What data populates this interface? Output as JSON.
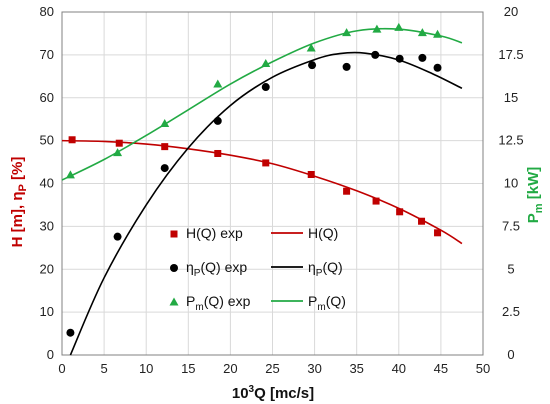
{
  "chart_data": {
    "type": "scatter",
    "xlabel": {
      "prefix": "10",
      "sup": "3",
      "rest": "Q [mc/s]"
    },
    "ylabel_left": {
      "a": "H [m], η",
      "sub": "P",
      "b": " [%]"
    },
    "ylabel_right": {
      "a": "P",
      "sub": "m",
      "b": " [kW]"
    },
    "xlim": [
      0,
      50
    ],
    "ylim_left": [
      0,
      80
    ],
    "ylim_right": [
      0,
      20
    ],
    "x_ticks": [
      "0",
      "5",
      "10",
      "15",
      "20",
      "25",
      "30",
      "35",
      "40",
      "45",
      "50"
    ],
    "y_left_ticks": [
      "0",
      "10",
      "20",
      "30",
      "40",
      "50",
      "60",
      "70",
      "80"
    ],
    "y_right_ticks": [
      "0",
      "2.5",
      "5",
      "7.5",
      "10",
      "12.5",
      "15",
      "17.5",
      "20"
    ],
    "grid": true,
    "colors": {
      "H": "#c00000",
      "eta": "#000000",
      "P": "#22aa44"
    },
    "series": [
      {
        "name": "H(Q) exp",
        "marker": "square",
        "axis": "left",
        "color": "#c00000",
        "x": [
          1.2,
          6.8,
          12.2,
          18.5,
          24.2,
          29.6,
          33.8,
          37.3,
          40.1,
          42.7,
          44.6
        ],
        "y": [
          50.2,
          49.4,
          48.6,
          47.0,
          44.8,
          42.1,
          38.2,
          35.9,
          33.4,
          31.2,
          28.5
        ]
      },
      {
        "name": "H(Q)",
        "kind": "line",
        "axis": "left",
        "color": "#c00000",
        "x": [
          0,
          5,
          10,
          15,
          20,
          25,
          30,
          35,
          40,
          45,
          47.5
        ],
        "y": [
          50.0,
          49.8,
          49.2,
          48.1,
          46.6,
          44.6,
          41.7,
          38.3,
          34.2,
          29.1,
          26.0
        ]
      },
      {
        "name": "ηP(Q) exp",
        "marker": "circle",
        "axis": "left",
        "color": "#000000",
        "x": [
          1.0,
          6.6,
          12.2,
          18.5,
          24.2,
          29.7,
          33.8,
          37.2,
          40.1,
          42.8,
          44.6
        ],
        "y": [
          5.2,
          27.6,
          43.6,
          54.6,
          62.5,
          67.6,
          67.2,
          70.0,
          69.1,
          69.3,
          67.0
        ]
      },
      {
        "name": "ηP(Q)",
        "kind": "line",
        "axis": "left",
        "color": "#000000",
        "x": [
          1.0,
          5,
          10,
          15,
          20,
          25,
          30,
          33,
          36,
          40,
          44,
          47.5
        ],
        "y": [
          0,
          18.0,
          35.0,
          48.3,
          58.2,
          64.8,
          68.9,
          70.3,
          70.4,
          68.8,
          65.6,
          62.2
        ]
      },
      {
        "name": "Pm(Q) exp",
        "marker": "triangle",
        "axis": "right",
        "color": "#22aa44",
        "x": [
          1.0,
          6.6,
          12.2,
          18.5,
          24.2,
          29.6,
          33.8,
          37.4,
          40.0,
          42.8,
          44.6
        ],
        "y": [
          10.5,
          11.8,
          13.5,
          15.8,
          17.0,
          17.9,
          18.8,
          19.0,
          19.1,
          18.8,
          18.7
        ]
      },
      {
        "name": "Pm(Q)",
        "kind": "line",
        "axis": "right",
        "color": "#22aa44",
        "x": [
          0,
          5,
          10,
          15,
          20,
          25,
          30,
          35,
          40,
          45,
          47.5
        ],
        "y": [
          10.2,
          11.4,
          12.8,
          14.3,
          15.8,
          17.1,
          18.2,
          18.9,
          19.0,
          18.6,
          18.2
        ]
      }
    ],
    "legend": [
      {
        "marker_label": {
          "a": "H(Q) exp",
          "sub": "",
          "b": ""
        },
        "line_label": {
          "a": "H(Q)",
          "sub": "",
          "b": ""
        },
        "marker": "square",
        "color": "#c00000"
      },
      {
        "marker_label": {
          "a": "η",
          "sub": "P",
          "b": "(Q) exp"
        },
        "line_label": {
          "a": "η",
          "sub": "P",
          "b": "(Q)"
        },
        "marker": "circle",
        "color": "#000000"
      },
      {
        "marker_label": {
          "a": "P",
          "sub": "m",
          "b": "(Q) exp"
        },
        "line_label": {
          "a": "P",
          "sub": "m",
          "b": "(Q)"
        },
        "marker": "triangle",
        "color": "#22aa44"
      }
    ]
  }
}
